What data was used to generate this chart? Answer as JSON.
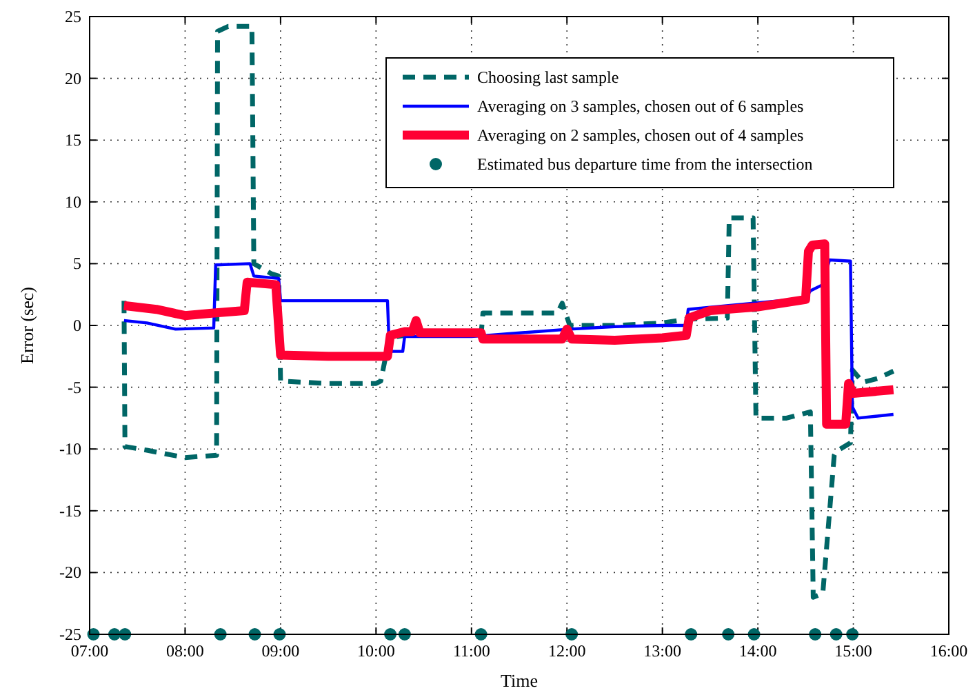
{
  "chart_data": {
    "type": "line",
    "xlabel": "Time",
    "ylabel": "Error (sec)",
    "xlim": [
      7,
      16
    ],
    "xticks": [
      {
        "value": 7,
        "label": "07:00"
      },
      {
        "value": 8,
        "label": "08:00"
      },
      {
        "value": 9,
        "label": "09:00"
      },
      {
        "value": 10,
        "label": "10:00"
      },
      {
        "value": 11,
        "label": "11:00"
      },
      {
        "value": 12,
        "label": "12:00"
      },
      {
        "value": 13,
        "label": "13:00"
      },
      {
        "value": 14,
        "label": "14:00"
      },
      {
        "value": 15,
        "label": "15:00"
      },
      {
        "value": 16,
        "label": "16:00"
      }
    ],
    "ylim": [
      -25,
      25
    ],
    "yticks": [
      -25,
      -20,
      -15,
      -10,
      -5,
      0,
      5,
      10,
      15,
      20,
      25
    ],
    "grid": true,
    "legend": "top right",
    "series": [
      {
        "name": "Choosing last sample",
        "color": "#006666",
        "line_style": "dashed",
        "x": [
          7.36,
          7.37,
          7.6,
          8.0,
          8.33,
          8.34,
          8.45,
          8.7,
          8.72,
          8.9,
          8.98,
          9.0,
          9.5,
          10.0,
          10.05,
          10.14,
          10.3,
          11.1,
          11.12,
          11.5,
          11.9,
          11.95,
          12.03,
          12.5,
          13.0,
          13.25,
          13.68,
          13.7,
          13.95,
          13.98,
          14.3,
          14.55,
          14.58,
          14.68,
          14.8,
          14.82,
          14.97,
          14.99,
          15.1,
          15.25,
          15.42
        ],
        "values": [
          2,
          -9.8,
          -10.1,
          -10.7,
          -10.5,
          23.8,
          24.2,
          24.2,
          5,
          4.2,
          4,
          -4.5,
          -4.7,
          -4.7,
          -4.5,
          -1,
          -0.8,
          -0.8,
          1,
          1,
          1,
          1.8,
          0,
          0,
          0.2,
          0.5,
          0.6,
          8.7,
          8.7,
          -7.5,
          -7.5,
          -7,
          -22,
          -21.7,
          -10.5,
          -10.2,
          -9.5,
          -3.6,
          -4.6,
          -4.3,
          -3.7
        ]
      },
      {
        "name": "Averaging on 3 samples, chosen out of 6 samples",
        "color": "#0000ff",
        "x": [
          7.36,
          7.6,
          7.9,
          8.3,
          8.32,
          8.68,
          8.72,
          8.98,
          9.0,
          10.12,
          10.14,
          10.28,
          10.3,
          11.0,
          12.03,
          12.5,
          13.0,
          13.25,
          13.27,
          14.5,
          14.55,
          14.68,
          14.75,
          14.97,
          14.99,
          15.05,
          15.42
        ],
        "values": [
          0.4,
          0.2,
          -0.3,
          -0.2,
          4.9,
          5,
          4,
          3.8,
          2,
          2,
          -2.1,
          -2.1,
          -0.9,
          -0.9,
          -0.3,
          -0.1,
          0,
          0,
          1.3,
          2.2,
          2.8,
          3.3,
          5.3,
          5.2,
          -6.6,
          -7.5,
          -7.2
        ]
      },
      {
        "name": "Averaging on 2 samples, chosen out of 4 samples",
        "color": "#ff0033",
        "x": [
          7.36,
          7.7,
          8.0,
          8.3,
          8.62,
          8.65,
          8.95,
          9.0,
          9.5,
          10.12,
          10.15,
          10.3,
          10.38,
          10.42,
          10.46,
          11.1,
          11.12,
          11.95,
          12.0,
          12.05,
          12.5,
          13.0,
          13.25,
          13.28,
          13.5,
          14.0,
          14.5,
          14.53,
          14.57,
          14.7,
          14.72,
          14.92,
          14.95,
          15.0,
          15.42
        ],
        "values": [
          1.6,
          1.3,
          0.8,
          1,
          1.2,
          3.5,
          3.3,
          -2.4,
          -2.5,
          -2.5,
          -0.8,
          -0.5,
          -0.5,
          0.4,
          -0.6,
          -0.6,
          -1.1,
          -1.1,
          -0.3,
          -1.1,
          -1.2,
          -1,
          -0.8,
          0.6,
          1.2,
          1.5,
          2.1,
          6,
          6.5,
          6.6,
          -8,
          -8,
          -4.7,
          -5.5,
          -5.2
        ]
      },
      {
        "type": "scatter",
        "name": "Estimated bus departure time from the intersection",
        "color": "#006666",
        "marker": "circle",
        "x": [
          7.04,
          7.26,
          7.37,
          8.37,
          8.73,
          8.99,
          10.15,
          10.3,
          11.1,
          12.05,
          13.3,
          13.69,
          13.96,
          14.6,
          14.82,
          14.99
        ],
        "values": [
          -25,
          -25,
          -25,
          -25,
          -25,
          -25,
          -25,
          -25,
          -25,
          -25,
          -25,
          -25,
          -25,
          -25,
          -25,
          -25
        ]
      }
    ]
  }
}
